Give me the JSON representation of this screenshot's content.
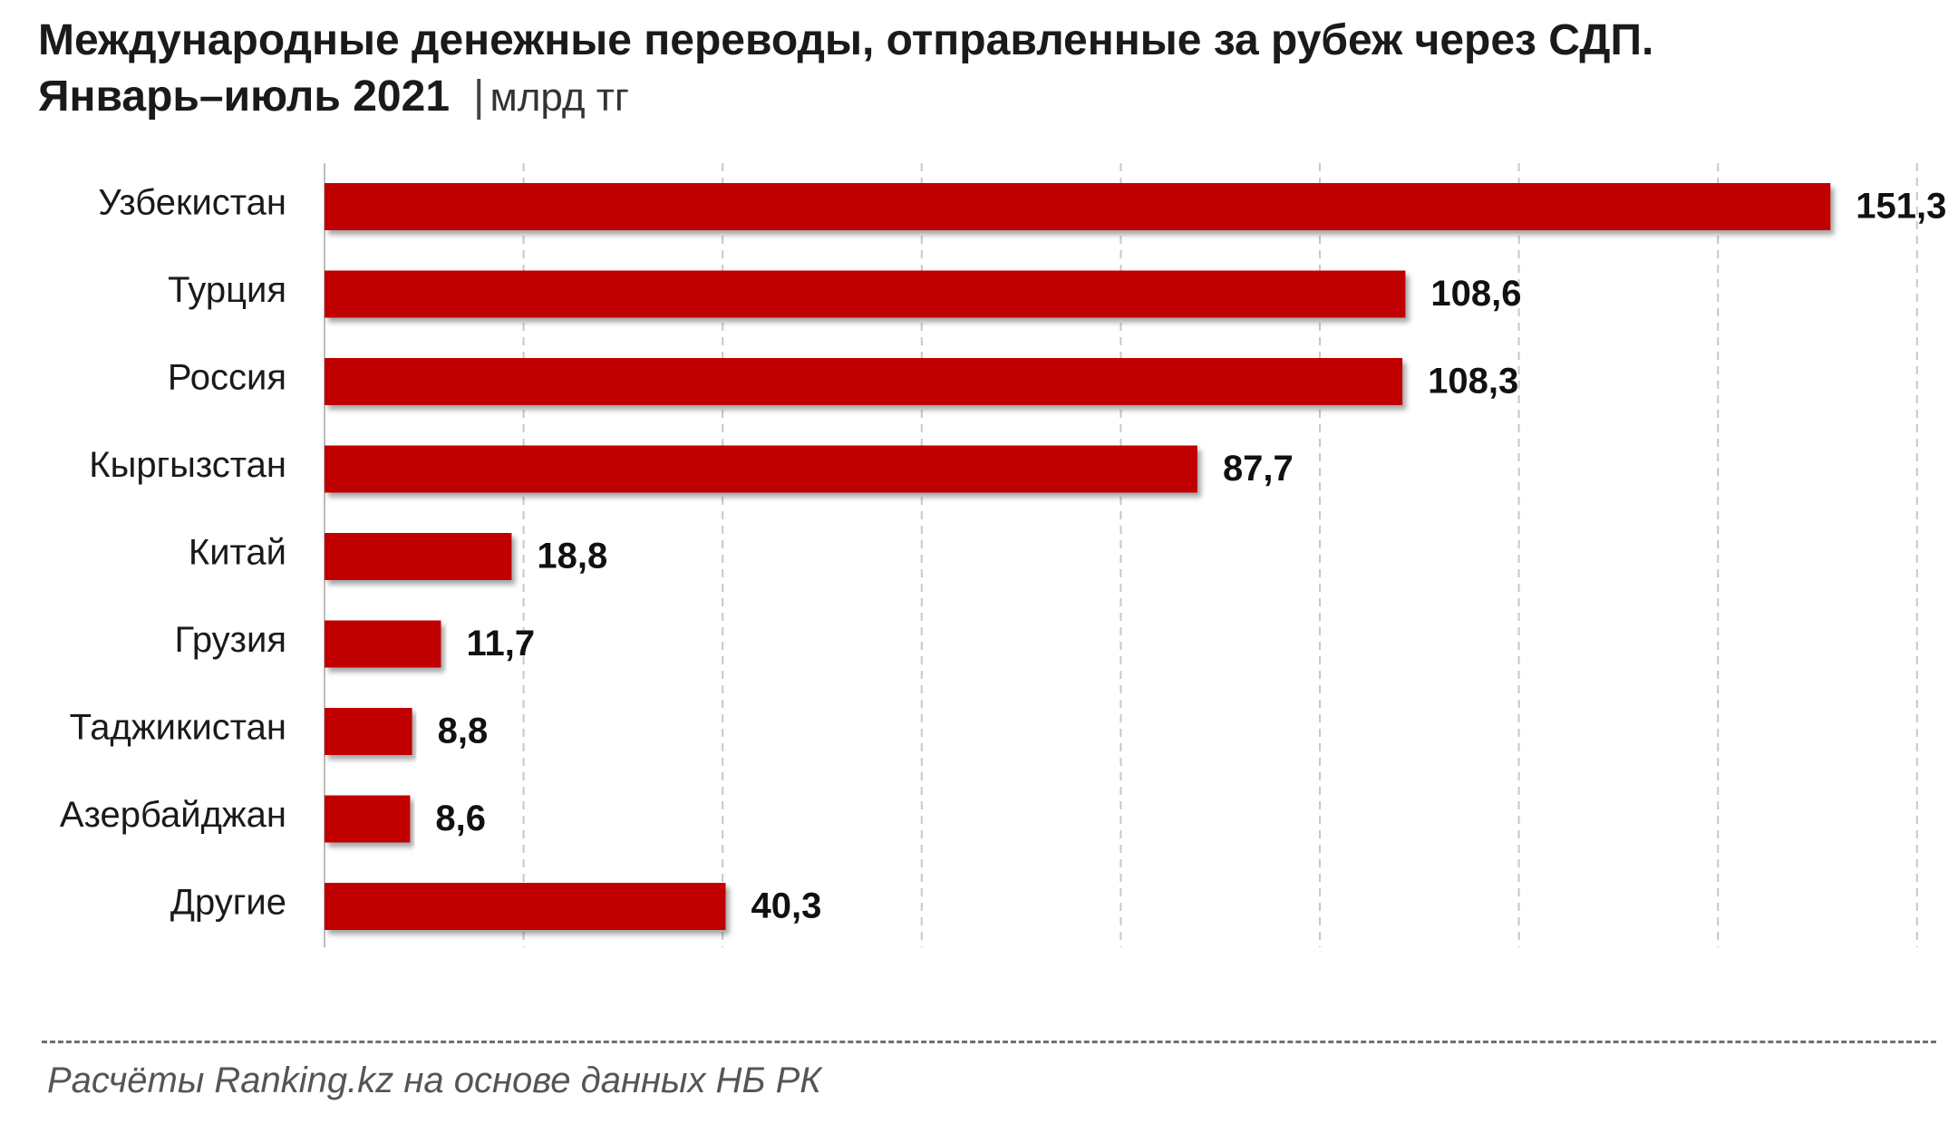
{
  "title": {
    "line1": "Международные денежные переводы, отправленные за рубеж через СДП.",
    "line2": "Январь–июль 2021",
    "separator": "|",
    "unit": "млрд тг"
  },
  "chart_data": {
    "type": "bar",
    "orientation": "horizontal",
    "categories": [
      "Узбекистан",
      "Турция",
      "Россия",
      "Кыргызстан",
      "Китай",
      "Грузия",
      "Таджикистан",
      "Азербайджан",
      "Другие"
    ],
    "values": [
      151.3,
      108.6,
      108.3,
      87.7,
      18.8,
      11.7,
      8.8,
      8.6,
      40.3
    ],
    "value_labels": [
      "151,3",
      "108,6",
      "108,3",
      "87,7",
      "18,8",
      "11,7",
      "8,8",
      "8,6",
      "40,3"
    ],
    "xlim": [
      0,
      160
    ],
    "grid": "vertical-dashed",
    "bar_color": "#c00000",
    "legend": "none"
  },
  "source": "Расчёты Ranking.kz на основе данных НБ РК"
}
